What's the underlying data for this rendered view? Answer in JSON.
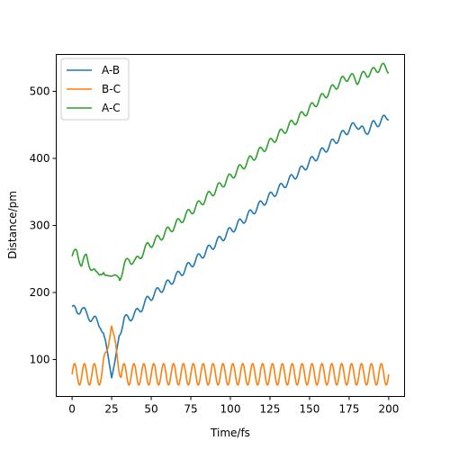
{
  "chart_data": {
    "type": "line",
    "xlabel": "Time/fs",
    "ylabel": "Distance/pm",
    "xlim": [
      -10,
      210
    ],
    "ylim": [
      45,
      555
    ],
    "xticks": [
      0,
      25,
      50,
      75,
      100,
      125,
      150,
      175,
      200
    ],
    "yticks": [
      100,
      200,
      300,
      400,
      500
    ],
    "legend_position": "top-left",
    "grid": false,
    "series": [
      {
        "name": "A-B",
        "color": "#1f77b4",
        "x": [
          0,
          3,
          6,
          9,
          12,
          15,
          18,
          21,
          23,
          25,
          27,
          30,
          33,
          36,
          40,
          44,
          48,
          52,
          56,
          60,
          65,
          70,
          75,
          80,
          85,
          90,
          95,
          100,
          105,
          110,
          115,
          120,
          125,
          130,
          135,
          140,
          145,
          150,
          155,
          160,
          165,
          170,
          175,
          180,
          185,
          190,
          195,
          200
        ],
        "y": [
          179,
          169,
          178,
          167,
          162,
          158,
          152,
          128,
          102,
          74,
          95,
          140,
          160,
          162,
          168,
          178,
          190,
          198,
          205,
          212,
          222,
          232,
          242,
          252,
          262,
          272,
          282,
          292,
          302,
          312,
          323,
          333,
          343,
          353,
          363,
          373,
          383,
          394,
          404,
          414,
          424,
          434,
          444,
          451,
          438,
          450,
          455,
          464
        ],
        "oscillation": {
          "amplitude": 6,
          "period": 6.5
        }
      },
      {
        "name": "B-C",
        "color": "#ff7f0e",
        "x": [
          0,
          200
        ],
        "y": [
          74,
          74
        ],
        "oscillation": {
          "min": 62,
          "max": 94,
          "period": 6.25,
          "spike": {
            "x": 25,
            "y": 150
          }
        }
      },
      {
        "name": "A-C",
        "color": "#2ca02c",
        "x": [
          0,
          3,
          6,
          9,
          12,
          15,
          18,
          21,
          24,
          27,
          30,
          33,
          36,
          40,
          44,
          48,
          52,
          56,
          60,
          65,
          70,
          75,
          80,
          85,
          90,
          95,
          100,
          105,
          110,
          115,
          120,
          125,
          130,
          135,
          140,
          145,
          150,
          155,
          160,
          165,
          170,
          175,
          180,
          185,
          190,
          195,
          200
        ],
        "y": [
          254,
          261,
          242,
          253,
          238,
          226,
          233,
          224,
          226,
          225,
          222,
          240,
          250,
          245,
          258,
          270,
          276,
          283,
          291,
          300,
          311,
          321,
          331,
          342,
          352,
          362,
          372,
          383,
          393,
          403,
          413,
          423,
          434,
          444,
          454,
          464,
          474,
          485,
          495,
          505,
          515,
          523,
          516,
          526,
          529,
          537,
          533
        ],
        "oscillation": {
          "amplitude": 6,
          "period": 6.5
        }
      }
    ]
  }
}
